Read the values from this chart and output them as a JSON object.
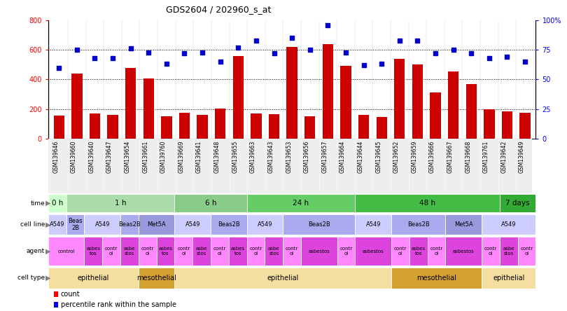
{
  "title": "GDS2604 / 202960_s_at",
  "samples": [
    "GSM139646",
    "GSM139660",
    "GSM139640",
    "GSM139647",
    "GSM139654",
    "GSM139661",
    "GSM139760",
    "GSM139669",
    "GSM139641",
    "GSM139648",
    "GSM139655",
    "GSM139663",
    "GSM139643",
    "GSM139653",
    "GSM139656",
    "GSM139657",
    "GSM139664",
    "GSM139644",
    "GSM139645",
    "GSM139652",
    "GSM139659",
    "GSM139666",
    "GSM139667",
    "GSM139668",
    "GSM139761",
    "GSM139642",
    "GSM139649"
  ],
  "counts": [
    155,
    440,
    170,
    160,
    480,
    405,
    150,
    175,
    160,
    205,
    560,
    170,
    165,
    620,
    150,
    640,
    490,
    160,
    145,
    540,
    500,
    310,
    455,
    370,
    200,
    185,
    175
  ],
  "percentiles": [
    60,
    75,
    68,
    68,
    76,
    73,
    63,
    72,
    73,
    65,
    77,
    83,
    72,
    85,
    75,
    96,
    73,
    62,
    63,
    83,
    83,
    72,
    75,
    72,
    68,
    69,
    65
  ],
  "time_groups": [
    {
      "label": "0 h",
      "start": 0,
      "end": 1,
      "color": "#ccffcc"
    },
    {
      "label": "1 h",
      "start": 1,
      "end": 7,
      "color": "#aaddaa"
    },
    {
      "label": "6 h",
      "start": 7,
      "end": 11,
      "color": "#88cc88"
    },
    {
      "label": "24 h",
      "start": 11,
      "end": 17,
      "color": "#66cc66"
    },
    {
      "label": "48 h",
      "start": 17,
      "end": 25,
      "color": "#44bb44"
    },
    {
      "label": "7 days",
      "start": 25,
      "end": 27,
      "color": "#33aa33"
    }
  ],
  "cell_line_groups": [
    {
      "label": "A549",
      "start": 0,
      "end": 1,
      "color": "#ccccff"
    },
    {
      "label": "Beas\n2B",
      "start": 1,
      "end": 2,
      "color": "#aaaaee"
    },
    {
      "label": "A549",
      "start": 2,
      "end": 4,
      "color": "#ccccff"
    },
    {
      "label": "Beas2B",
      "start": 4,
      "end": 5,
      "color": "#aaaaee"
    },
    {
      "label": "Met5A",
      "start": 5,
      "end": 7,
      "color": "#9999dd"
    },
    {
      "label": "A549",
      "start": 7,
      "end": 9,
      "color": "#ccccff"
    },
    {
      "label": "Beas2B",
      "start": 9,
      "end": 11,
      "color": "#aaaaee"
    },
    {
      "label": "A549",
      "start": 11,
      "end": 13,
      "color": "#ccccff"
    },
    {
      "label": "Beas2B",
      "start": 13,
      "end": 17,
      "color": "#aaaaee"
    },
    {
      "label": "A549",
      "start": 17,
      "end": 19,
      "color": "#ccccff"
    },
    {
      "label": "Beas2B",
      "start": 19,
      "end": 22,
      "color": "#aaaaee"
    },
    {
      "label": "Met5A",
      "start": 22,
      "end": 24,
      "color": "#9999dd"
    },
    {
      "label": "A549",
      "start": 24,
      "end": 27,
      "color": "#ccccff"
    }
  ],
  "agent_groups": [
    {
      "label": "control",
      "start": 0,
      "end": 2,
      "color": "#ff88ff"
    },
    {
      "label": "asbes\ntos",
      "start": 2,
      "end": 3,
      "color": "#dd44dd"
    },
    {
      "label": "contr\nol",
      "start": 3,
      "end": 4,
      "color": "#ff88ff"
    },
    {
      "label": "asbe\nstos",
      "start": 4,
      "end": 5,
      "color": "#dd44dd"
    },
    {
      "label": "contr\nol",
      "start": 5,
      "end": 6,
      "color": "#ff88ff"
    },
    {
      "label": "asbes\ntos",
      "start": 6,
      "end": 7,
      "color": "#dd44dd"
    },
    {
      "label": "contr\nol",
      "start": 7,
      "end": 8,
      "color": "#ff88ff"
    },
    {
      "label": "asbe\nstos",
      "start": 8,
      "end": 9,
      "color": "#dd44dd"
    },
    {
      "label": "contr\nol",
      "start": 9,
      "end": 10,
      "color": "#ff88ff"
    },
    {
      "label": "asbes\ntos",
      "start": 10,
      "end": 11,
      "color": "#dd44dd"
    },
    {
      "label": "contr\nol",
      "start": 11,
      "end": 12,
      "color": "#ff88ff"
    },
    {
      "label": "asbe\nstos",
      "start": 12,
      "end": 13,
      "color": "#dd44dd"
    },
    {
      "label": "contr\nol",
      "start": 13,
      "end": 14,
      "color": "#ff88ff"
    },
    {
      "label": "asbestos",
      "start": 14,
      "end": 16,
      "color": "#dd44dd"
    },
    {
      "label": "contr\nol",
      "start": 16,
      "end": 17,
      "color": "#ff88ff"
    },
    {
      "label": "asbestos",
      "start": 17,
      "end": 19,
      "color": "#dd44dd"
    },
    {
      "label": "contr\nol",
      "start": 19,
      "end": 20,
      "color": "#ff88ff"
    },
    {
      "label": "asbes\ntos",
      "start": 20,
      "end": 21,
      "color": "#dd44dd"
    },
    {
      "label": "contr\nol",
      "start": 21,
      "end": 22,
      "color": "#ff88ff"
    },
    {
      "label": "asbestos",
      "start": 22,
      "end": 24,
      "color": "#dd44dd"
    },
    {
      "label": "contr\nol",
      "start": 24,
      "end": 25,
      "color": "#ff88ff"
    },
    {
      "label": "asbe\nstos",
      "start": 25,
      "end": 26,
      "color": "#dd44dd"
    },
    {
      "label": "contr\nol",
      "start": 26,
      "end": 27,
      "color": "#ff88ff"
    }
  ],
  "cell_type_groups": [
    {
      "label": "epithelial",
      "start": 0,
      "end": 5,
      "color": "#f5dfa0"
    },
    {
      "label": "mesothelial",
      "start": 5,
      "end": 7,
      "color": "#d4a030"
    },
    {
      "label": "epithelial",
      "start": 7,
      "end": 19,
      "color": "#f5dfa0"
    },
    {
      "label": "mesothelial",
      "start": 19,
      "end": 24,
      "color": "#d4a030"
    },
    {
      "label": "epithelial",
      "start": 24,
      "end": 27,
      "color": "#f5dfa0"
    }
  ],
  "bar_color": "#cc0000",
  "dot_color": "#0000cc",
  "ylim_left": [
    0,
    800
  ],
  "ylim_right": [
    0,
    100
  ],
  "yticks_left": [
    0,
    200,
    400,
    600,
    800
  ],
  "yticks_right": [
    0,
    25,
    50,
    75,
    100
  ],
  "ytick_labels_right": [
    "0",
    "25",
    "50",
    "75",
    "100%"
  ],
  "hline_y": [
    200,
    400,
    600
  ]
}
